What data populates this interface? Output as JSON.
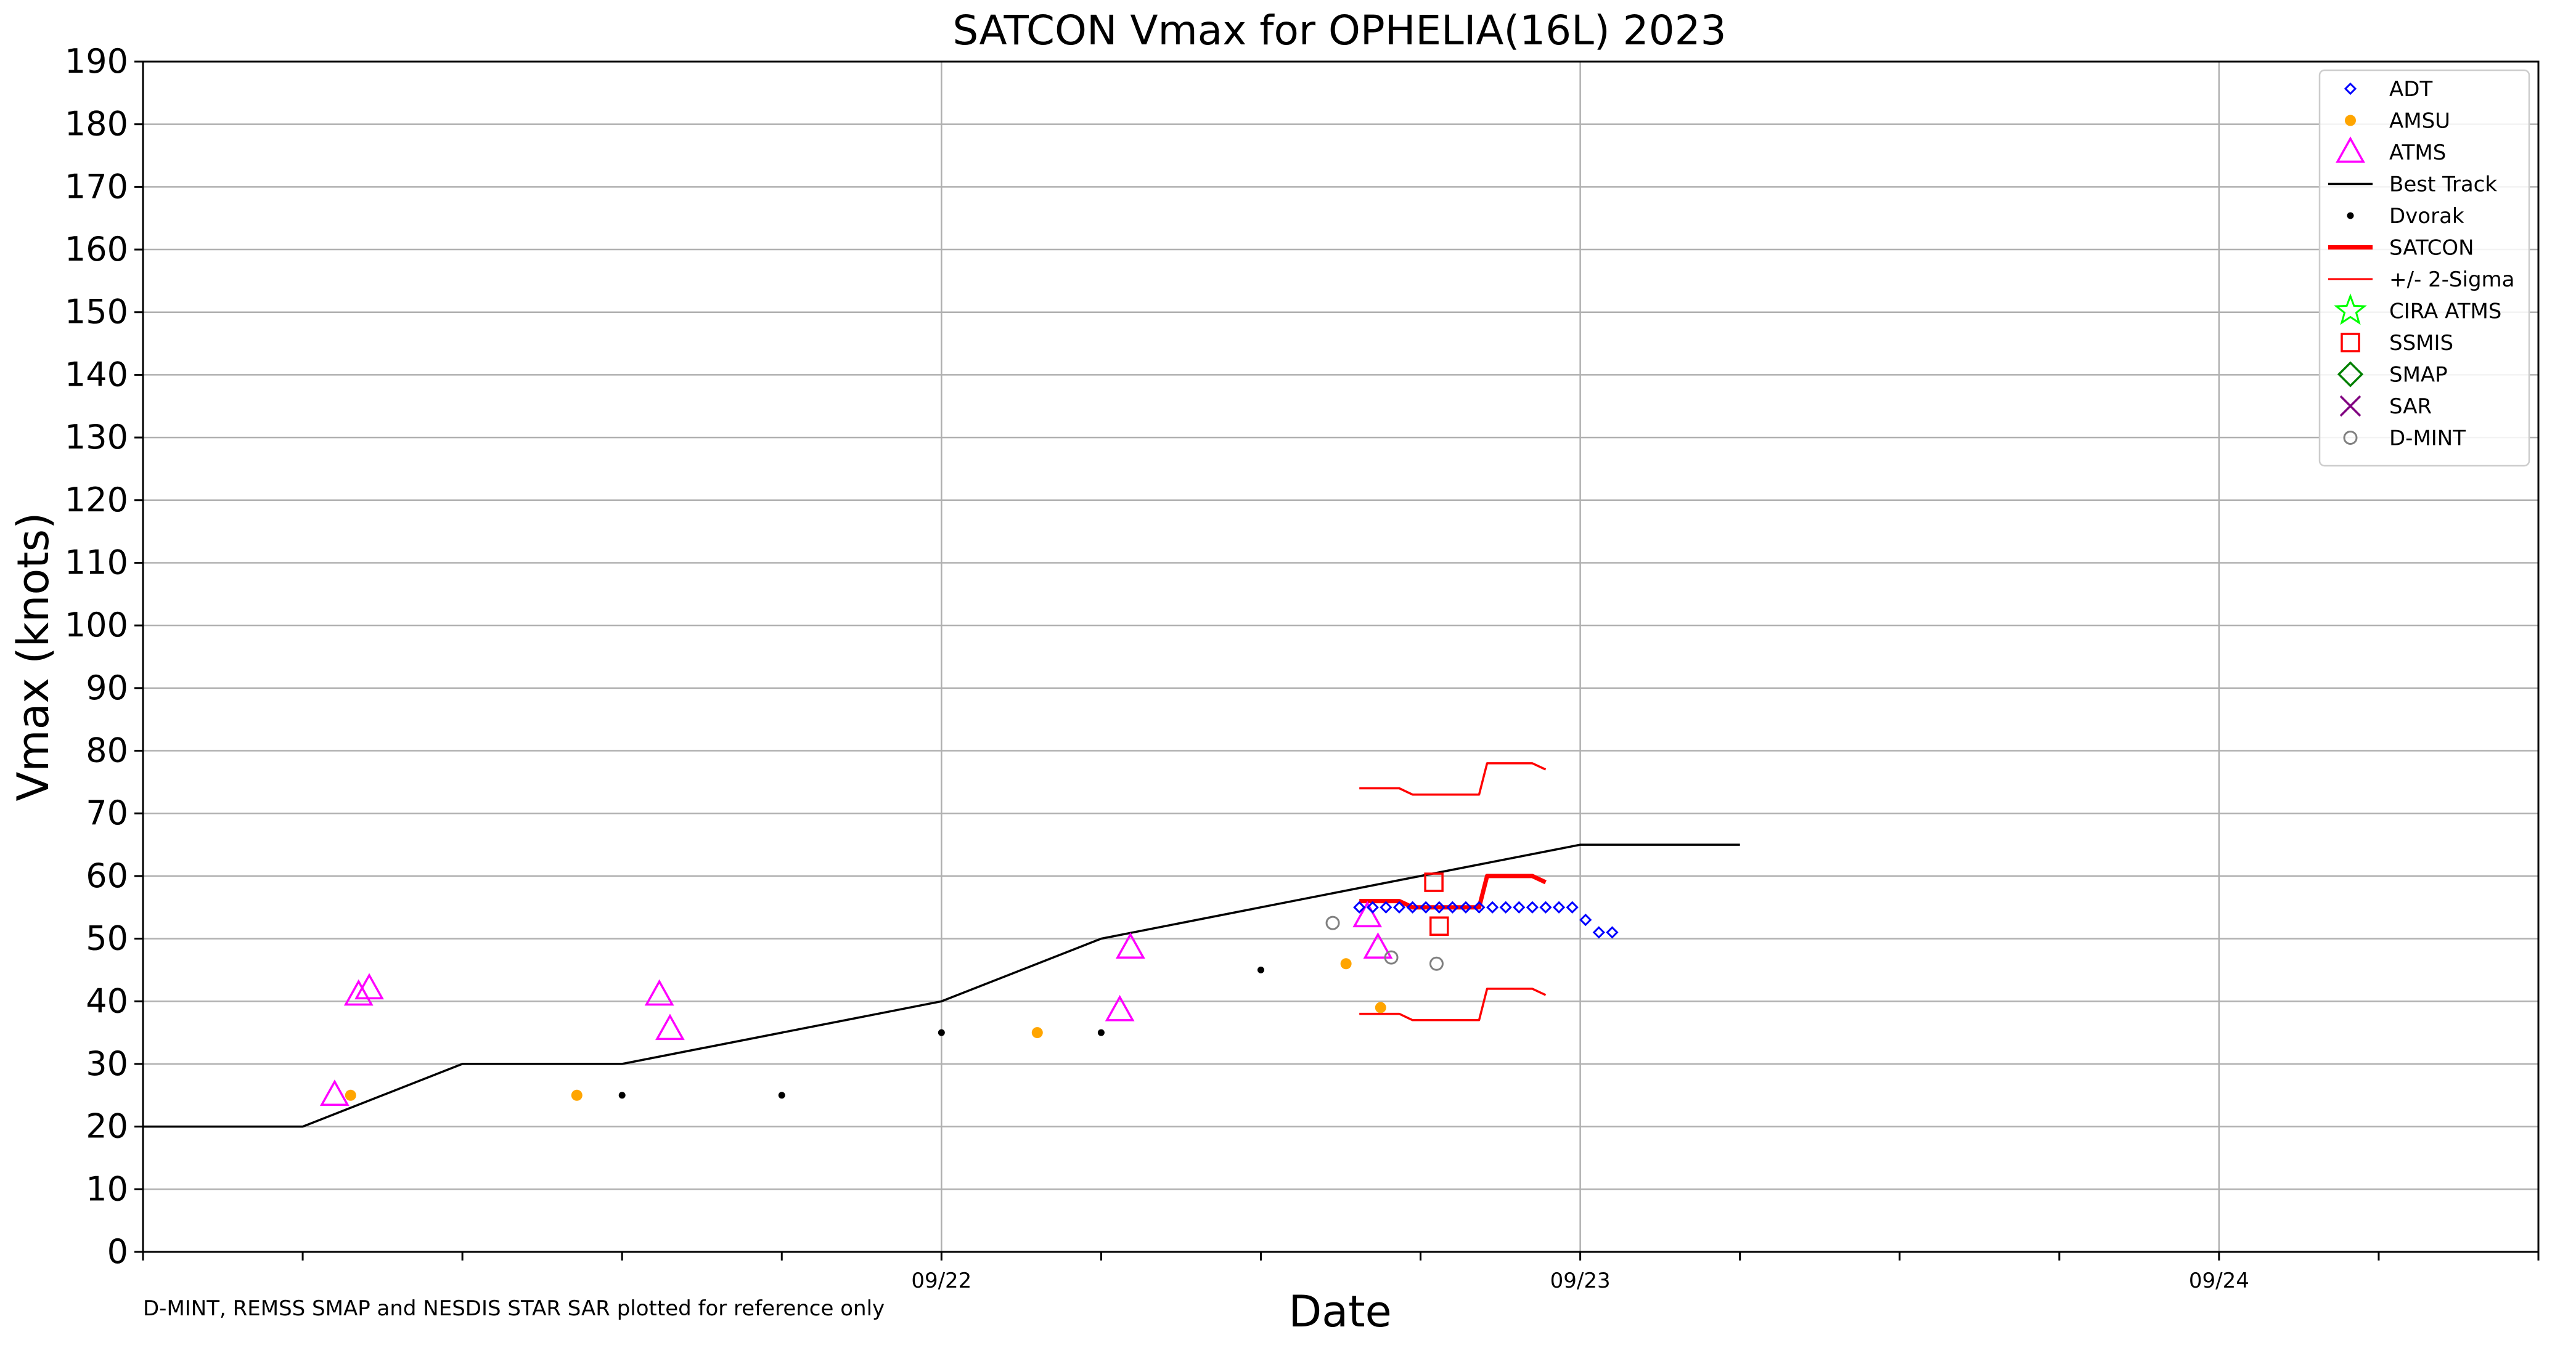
{
  "chart_data": {
    "type": "scatter",
    "title": "SATCON Vmax for OPHELIA(16L) 2023",
    "xlabel": "Date",
    "ylabel": "Vmax (knots)",
    "footnote": "D-MINT, REMSS SMAP and NESDIS STAR SAR plotted for reference only",
    "ylim": [
      0,
      190
    ],
    "yticks": [
      0,
      10,
      20,
      30,
      40,
      50,
      60,
      70,
      80,
      90,
      100,
      110,
      120,
      130,
      140,
      150,
      160,
      170,
      180,
      190
    ],
    "xlim": [
      "09/21 00:00",
      "09/24 18:00"
    ],
    "x_axis_note": "x values are hours after 09/21 00:00",
    "xlim_hours": [
      0,
      90
    ],
    "xticks": [
      {
        "h": 0,
        "label": ""
      },
      {
        "h": 6,
        "label": ""
      },
      {
        "h": 12,
        "label": ""
      },
      {
        "h": 18,
        "label": ""
      },
      {
        "h": 24,
        "label": ""
      },
      {
        "h": 30,
        "label": "09/22"
      },
      {
        "h": 36,
        "label": ""
      },
      {
        "h": 42,
        "label": ""
      },
      {
        "h": 48,
        "label": ""
      },
      {
        "h": 54,
        "label": "09/23"
      },
      {
        "h": 60,
        "label": ""
      },
      {
        "h": 66,
        "label": ""
      },
      {
        "h": 72,
        "label": ""
      },
      {
        "h": 78,
        "label": "09/24"
      },
      {
        "h": 84,
        "label": ""
      },
      {
        "h": 90,
        "label": ""
      }
    ],
    "major_x_gridlines_hours": [
      30,
      54,
      78
    ],
    "grid": true,
    "legend_position": "top-right",
    "series": [
      {
        "name": "ADT",
        "marker": "diamond-open",
        "color": "#0000ff",
        "x": [
          45.7,
          46.2,
          46.7,
          47.2,
          47.7,
          48.2,
          48.7,
          49.2,
          49.7,
          50.2,
          50.7,
          51.2,
          51.7,
          52.2,
          52.7,
          53.2,
          53.7,
          54.2,
          54.7,
          55.2
        ],
        "y": [
          55,
          55,
          55,
          55,
          55,
          55,
          55,
          55,
          55,
          55,
          55,
          55,
          55,
          55,
          55,
          55,
          55,
          53,
          51,
          51
        ]
      },
      {
        "name": "AMSU",
        "marker": "dot",
        "color": "#ffa500",
        "x": [
          7.8,
          16.3,
          33.6,
          45.2,
          46.5
        ],
        "y": [
          25,
          25,
          35,
          46,
          39
        ]
      },
      {
        "name": "ATMS",
        "marker": "triangle-open",
        "color": "#ff00ff",
        "x": [
          7.2,
          8.1,
          8.5,
          19.4,
          19.8,
          36.7,
          37.1,
          46.0,
          46.4
        ],
        "y": [
          25,
          41,
          42,
          41,
          35.5,
          38.5,
          48.5,
          53.5,
          48.5
        ]
      },
      {
        "name": "Best Track",
        "marker": "line",
        "color": "#000000",
        "x": [
          0,
          6,
          12,
          18,
          24,
          30,
          36,
          42,
          48,
          54,
          60
        ],
        "y": [
          20,
          20,
          30,
          30,
          35,
          40,
          50,
          55,
          60,
          65,
          65
        ]
      },
      {
        "name": "Dvorak",
        "marker": "dot-small",
        "color": "#000000",
        "x": [
          18,
          24,
          30,
          36,
          42
        ],
        "y": [
          25,
          25,
          35,
          35,
          45
        ]
      },
      {
        "name": "SATCON",
        "marker": "thick-line",
        "color": "#ff0000",
        "x": [
          45.7,
          46.7,
          47.2,
          47.7,
          48.2,
          50.2,
          50.5,
          51.7,
          52.2,
          52.7
        ],
        "y": [
          56,
          56,
          56,
          55,
          55,
          55,
          60,
          60,
          60,
          59
        ]
      },
      {
        "name": "+/- 2-Sigma",
        "marker": "thin-line",
        "color": "#ff0000",
        "upper": {
          "x": [
            45.7,
            46.7,
            47.2,
            47.7,
            48.2,
            50.2,
            50.5,
            51.7,
            52.2,
            52.7
          ],
          "y": [
            74,
            74,
            74,
            73,
            73,
            73,
            78,
            78,
            78,
            77
          ]
        },
        "lower": {
          "x": [
            45.7,
            46.7,
            47.2,
            47.7,
            48.2,
            50.2,
            50.5,
            51.7,
            52.2,
            52.7
          ],
          "y": [
            38,
            38,
            38,
            37,
            37,
            37,
            42,
            42,
            42,
            41
          ]
        }
      },
      {
        "name": "CIRA ATMS",
        "marker": "star-open",
        "color": "#00ff00",
        "x": [],
        "y": []
      },
      {
        "name": "SSMIS",
        "marker": "square-open",
        "color": "#ff0000",
        "x": [
          48.5,
          48.7
        ],
        "y": [
          59,
          52
        ]
      },
      {
        "name": "SMAP",
        "marker": "diamond-open-large",
        "color": "#008000",
        "x": [],
        "y": []
      },
      {
        "name": "SAR",
        "marker": "x",
        "color": "#800080",
        "x": [],
        "y": []
      },
      {
        "name": "D-MINT",
        "marker": "circle-open",
        "color": "#808080",
        "x": [
          44.7,
          46.9,
          48.6
        ],
        "y": [
          52.5,
          47,
          46
        ]
      }
    ]
  }
}
